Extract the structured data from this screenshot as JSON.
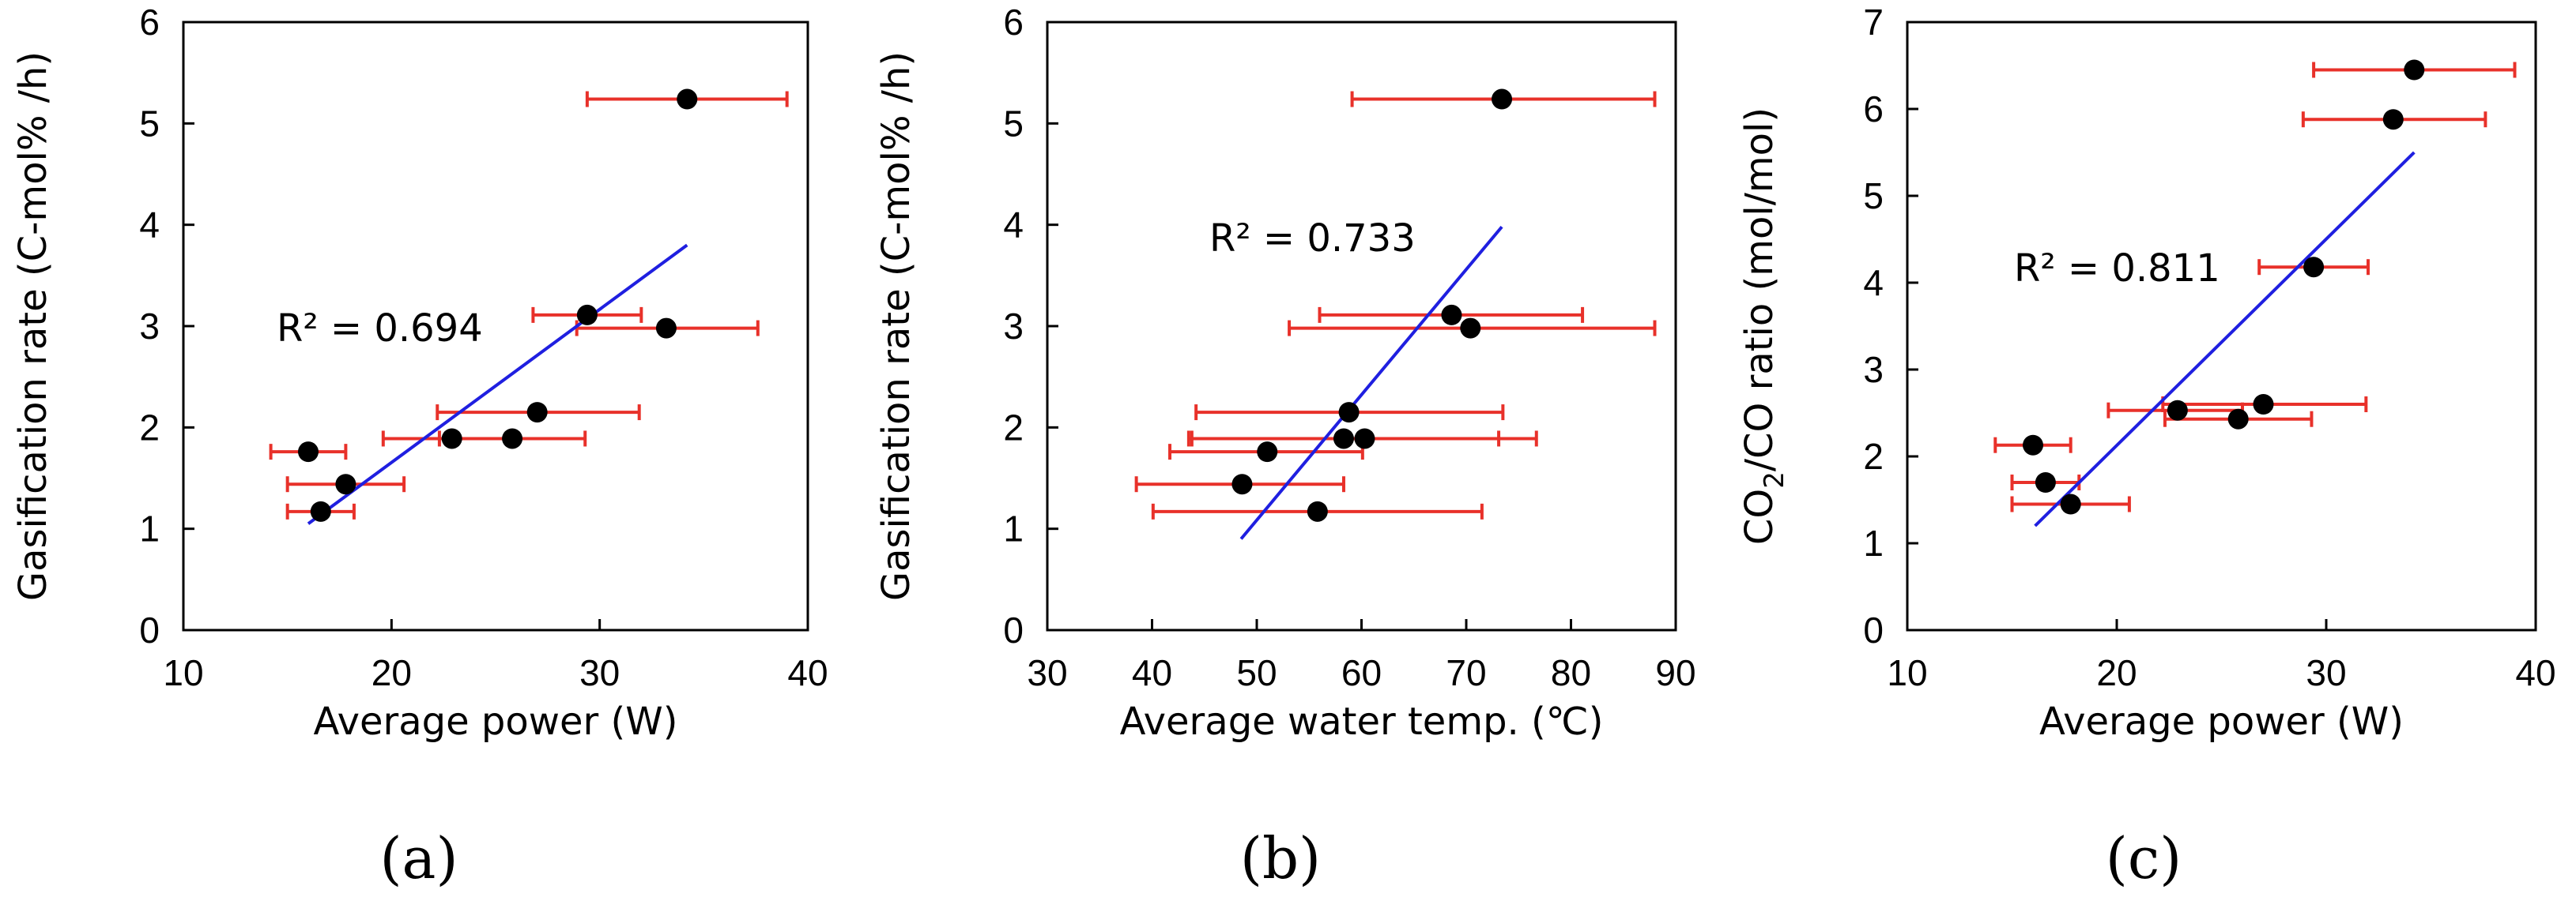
{
  "chart_data": [
    {
      "type": "scatter",
      "panel_label": "(a)",
      "xlabel": "Average power (W)",
      "ylabel": "Gasification rate (C-mol% /h)",
      "ylabel_parts": {
        "before": "Gasification rate (C-mol% /h)",
        "sub": "",
        "after": ""
      },
      "xlim": [
        10,
        40
      ],
      "ylim": [
        0,
        6
      ],
      "xticks": [
        10,
        20,
        30,
        40
      ],
      "yticks": [
        0,
        1,
        2,
        3,
        4,
        5,
        6
      ],
      "r2_text": "R² = 0.694",
      "points": [
        {
          "x": 16.0,
          "y": 1.76,
          "xerr": [
            14.2,
            17.8
          ]
        },
        {
          "x": 16.6,
          "y": 1.17,
          "xerr": [
            15.0,
            18.2
          ]
        },
        {
          "x": 17.8,
          "y": 1.44,
          "xerr": [
            15.0,
            20.6
          ]
        },
        {
          "x": 22.9,
          "y": 1.89,
          "xerr": [
            19.6,
            26.0
          ]
        },
        {
          "x": 25.8,
          "y": 1.89,
          "xerr": [
            22.3,
            29.3
          ]
        },
        {
          "x": 27.0,
          "y": 2.15,
          "xerr": [
            22.2,
            31.9
          ]
        },
        {
          "x": 29.4,
          "y": 3.11,
          "xerr": [
            26.8,
            32.0
          ]
        },
        {
          "x": 33.2,
          "y": 2.98,
          "xerr": [
            28.9,
            37.6
          ]
        },
        {
          "x": 34.2,
          "y": 5.24,
          "xerr": [
            29.4,
            39.0
          ]
        }
      ],
      "fit": {
        "x1": 16.0,
        "y1": 1.05,
        "x2": 34.2,
        "y2": 3.8
      }
    },
    {
      "type": "scatter",
      "panel_label": "(b)",
      "xlabel": "Average water temp. (℃)",
      "ylabel": "Gasification rate (C-mol% /h)",
      "ylabel_parts": {
        "before": "Gasification rate (C-mol% /h)",
        "sub": "",
        "after": ""
      },
      "xlim": [
        30,
        90
      ],
      "ylim": [
        0,
        6
      ],
      "xticks": [
        30,
        40,
        50,
        60,
        70,
        80,
        90
      ],
      "yticks": [
        0,
        1,
        2,
        3,
        4,
        5,
        6
      ],
      "r2_text": "R² = 0.733",
      "points": [
        {
          "x": 48.6,
          "y": 1.44,
          "xerr": [
            38.5,
            58.3
          ]
        },
        {
          "x": 51.0,
          "y": 1.76,
          "xerr": [
            41.7,
            60.1
          ]
        },
        {
          "x": 55.8,
          "y": 1.17,
          "xerr": [
            40.1,
            71.5
          ]
        },
        {
          "x": 58.3,
          "y": 1.89,
          "xerr": [
            43.5,
            73.1
          ]
        },
        {
          "x": 58.8,
          "y": 2.15,
          "xerr": [
            44.2,
            73.5
          ]
        },
        {
          "x": 60.3,
          "y": 1.89,
          "xerr": [
            43.8,
            76.7
          ]
        },
        {
          "x": 68.6,
          "y": 3.11,
          "xerr": [
            56.0,
            81.1
          ]
        },
        {
          "x": 70.4,
          "y": 2.98,
          "xerr": [
            53.1,
            88.0
          ]
        },
        {
          "x": 73.4,
          "y": 5.24,
          "xerr": [
            59.1,
            88.0
          ]
        }
      ],
      "fit": {
        "x1": 48.5,
        "y1": 0.9,
        "x2": 73.4,
        "y2": 3.98
      }
    },
    {
      "type": "scatter",
      "panel_label": "(c)",
      "xlabel": "Average power (W)",
      "ylabel": "CO2/CO ratio (mol/mol)",
      "ylabel_parts": {
        "before": "CO",
        "sub": "2",
        "after": "/CO ratio (mol/mol)"
      },
      "xlim": [
        10,
        40
      ],
      "ylim": [
        0,
        7
      ],
      "xticks": [
        10,
        20,
        30,
        40
      ],
      "yticks": [
        0,
        1,
        2,
        3,
        4,
        5,
        6,
        7
      ],
      "r2_text": "R² = 0.811",
      "points": [
        {
          "x": 16.0,
          "y": 2.13,
          "xerr": [
            14.2,
            17.8
          ]
        },
        {
          "x": 16.6,
          "y": 1.7,
          "xerr": [
            15.0,
            18.2
          ]
        },
        {
          "x": 17.8,
          "y": 1.45,
          "xerr": [
            15.0,
            20.6
          ]
        },
        {
          "x": 22.9,
          "y": 2.53,
          "xerr": [
            19.6,
            26.0
          ]
        },
        {
          "x": 25.8,
          "y": 2.43,
          "xerr": [
            22.3,
            29.3
          ]
        },
        {
          "x": 27.0,
          "y": 2.6,
          "xerr": [
            22.2,
            31.9
          ]
        },
        {
          "x": 29.4,
          "y": 4.18,
          "xerr": [
            26.8,
            32.0
          ]
        },
        {
          "x": 33.2,
          "y": 5.88,
          "xerr": [
            28.9,
            37.6
          ]
        },
        {
          "x": 34.2,
          "y": 6.45,
          "xerr": [
            29.4,
            39.0
          ]
        }
      ],
      "fit": {
        "x1": 16.1,
        "y1": 1.2,
        "x2": 34.2,
        "y2": 5.5
      }
    }
  ]
}
